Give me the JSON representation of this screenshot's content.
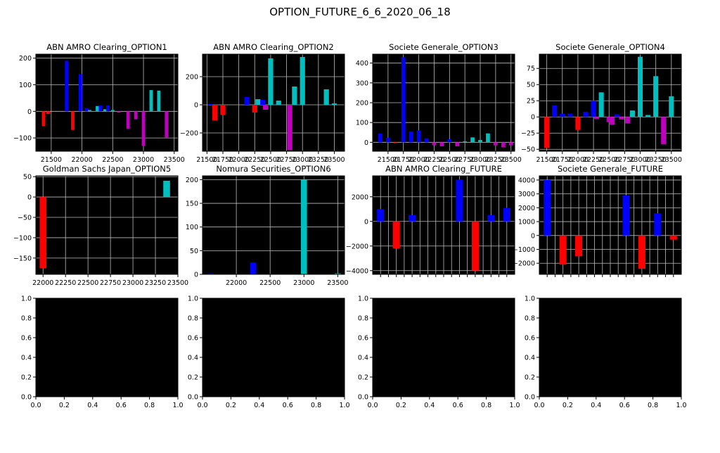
{
  "figure": {
    "title": "OPTION_FUTURE_6_6_2020_06_18",
    "background": "#ffffff",
    "plot_background": "#000000",
    "grid": true,
    "grid_color": "#bbbbbb",
    "colors": {
      "red": "#ff0000",
      "blue": "#0000ff",
      "cyan": "#00bfbf",
      "magenta": "#bf00bf"
    }
  },
  "chart_data": [
    {
      "type": "bar",
      "title": "ABN AMRO Clearing_OPTION1",
      "xlim": [
        21250,
        23560
      ],
      "ylim": [
        -150,
        215
      ],
      "xticks": [
        21500,
        22000,
        22500,
        23000,
        23500
      ],
      "yticks": [
        -100,
        0,
        100,
        200
      ],
      "bar_width": 55,
      "bars": [
        {
          "x": 21375,
          "value": -55,
          "color": "red"
        },
        {
          "x": 21450,
          "value": -10,
          "color": "red"
        },
        {
          "x": 21750,
          "value": 190,
          "color": "blue"
        },
        {
          "x": 21850,
          "value": -70,
          "color": "red"
        },
        {
          "x": 21975,
          "value": 140,
          "color": "blue"
        },
        {
          "x": 22075,
          "value": 12,
          "color": "blue"
        },
        {
          "x": 22125,
          "value": 5,
          "color": "cyan"
        },
        {
          "x": 22250,
          "value": 20,
          "color": "cyan"
        },
        {
          "x": 22300,
          "value": 22,
          "color": "blue"
        },
        {
          "x": 22375,
          "value": 8,
          "color": "cyan"
        },
        {
          "x": 22420,
          "value": 22,
          "color": "blue"
        },
        {
          "x": 22500,
          "value": 5,
          "color": "cyan"
        },
        {
          "x": 22600,
          "value": -5,
          "color": "magenta"
        },
        {
          "x": 22750,
          "value": -65,
          "color": "magenta"
        },
        {
          "x": 22875,
          "value": -30,
          "color": "magenta"
        },
        {
          "x": 23000,
          "value": -130,
          "color": "magenta"
        },
        {
          "x": 23125,
          "value": 80,
          "color": "cyan"
        },
        {
          "x": 23250,
          "value": 78,
          "color": "cyan"
        },
        {
          "x": 23375,
          "value": -100,
          "color": "magenta"
        }
      ]
    },
    {
      "type": "bar",
      "title": "ABN AMRO Clearing_OPTION2",
      "xlim": [
        21430,
        23660
      ],
      "ylim": [
        -330,
        360
      ],
      "xticks": [
        21500,
        21750,
        22000,
        22250,
        22500,
        22750,
        23000,
        23250,
        23500
      ],
      "yticks": [
        -200,
        0,
        200
      ],
      "bar_width": 80,
      "bars": [
        {
          "x": 21550,
          "value": 5,
          "color": "blue"
        },
        {
          "x": 21625,
          "value": -110,
          "color": "red"
        },
        {
          "x": 21750,
          "value": -70,
          "color": "red"
        },
        {
          "x": 22125,
          "value": 55,
          "color": "blue"
        },
        {
          "x": 22250,
          "value": -55,
          "color": "red"
        },
        {
          "x": 22300,
          "value": 40,
          "color": "cyan"
        },
        {
          "x": 22375,
          "value": 35,
          "color": "blue"
        },
        {
          "x": 22420,
          "value": -35,
          "color": "magenta"
        },
        {
          "x": 22500,
          "value": 330,
          "color": "cyan"
        },
        {
          "x": 22625,
          "value": 30,
          "color": "cyan"
        },
        {
          "x": 22800,
          "value": -320,
          "color": "magenta"
        },
        {
          "x": 22875,
          "value": 130,
          "color": "cyan"
        },
        {
          "x": 23000,
          "value": 340,
          "color": "cyan"
        },
        {
          "x": 23375,
          "value": 110,
          "color": "cyan"
        },
        {
          "x": 23500,
          "value": 10,
          "color": "cyan"
        }
      ]
    },
    {
      "type": "bar",
      "title": "Societe Generale_OPTION3",
      "xlim": [
        21250,
        23560
      ],
      "ylim": [
        -45,
        445
      ],
      "xticks": [
        21500,
        21750,
        22000,
        22250,
        22500,
        22750,
        23000,
        23250,
        23500
      ],
      "yticks": [
        0,
        100,
        200,
        300,
        400
      ],
      "bar_width": 65,
      "bars": [
        {
          "x": 21375,
          "value": 45,
          "color": "blue"
        },
        {
          "x": 21500,
          "value": 22,
          "color": "blue"
        },
        {
          "x": 21625,
          "value": -3,
          "color": "red"
        },
        {
          "x": 21750,
          "value": 430,
          "color": "blue"
        },
        {
          "x": 21875,
          "value": 55,
          "color": "blue"
        },
        {
          "x": 22000,
          "value": 60,
          "color": "blue"
        },
        {
          "x": 22125,
          "value": 20,
          "color": "blue"
        },
        {
          "x": 22250,
          "value": -15,
          "color": "magenta"
        },
        {
          "x": 22375,
          "value": -20,
          "color": "magenta"
        },
        {
          "x": 22500,
          "value": 15,
          "color": "blue"
        },
        {
          "x": 22625,
          "value": -20,
          "color": "magenta"
        },
        {
          "x": 22750,
          "value": 5,
          "color": "cyan"
        },
        {
          "x": 22875,
          "value": 25,
          "color": "cyan"
        },
        {
          "x": 23000,
          "value": 12,
          "color": "cyan"
        },
        {
          "x": 23125,
          "value": 45,
          "color": "cyan"
        },
        {
          "x": 23250,
          "value": -15,
          "color": "magenta"
        },
        {
          "x": 23375,
          "value": -25,
          "color": "magenta"
        },
        {
          "x": 23500,
          "value": -15,
          "color": "magenta"
        }
      ]
    },
    {
      "type": "bar",
      "title": "Societe Generale_OPTION4",
      "xlim": [
        21380,
        23660
      ],
      "ylim": [
        -53,
        97
      ],
      "xticks": [
        21500,
        21750,
        22000,
        22250,
        22500,
        22750,
        23000,
        23250,
        23500
      ],
      "yticks": [
        -50,
        -25,
        0,
        25,
        50,
        75
      ],
      "bar_width": 80,
      "bars": [
        {
          "x": 21500,
          "value": -48,
          "color": "red"
        },
        {
          "x": 21625,
          "value": 18,
          "color": "blue"
        },
        {
          "x": 21750,
          "value": 5,
          "color": "blue"
        },
        {
          "x": 21875,
          "value": 5,
          "color": "blue"
        },
        {
          "x": 22000,
          "value": -20,
          "color": "red"
        },
        {
          "x": 22125,
          "value": 8,
          "color": "blue"
        },
        {
          "x": 22250,
          "value": 25,
          "color": "blue"
        },
        {
          "x": 22300,
          "value": -3,
          "color": "magenta"
        },
        {
          "x": 22375,
          "value": 38,
          "color": "cyan"
        },
        {
          "x": 22500,
          "value": -8,
          "color": "magenta"
        },
        {
          "x": 22550,
          "value": -12,
          "color": "magenta"
        },
        {
          "x": 22625,
          "value": 4,
          "color": "blue"
        },
        {
          "x": 22700,
          "value": -4,
          "color": "magenta"
        },
        {
          "x": 22800,
          "value": -10,
          "color": "magenta"
        },
        {
          "x": 22875,
          "value": 10,
          "color": "cyan"
        },
        {
          "x": 23000,
          "value": 93,
          "color": "cyan"
        },
        {
          "x": 23125,
          "value": 3,
          "color": "cyan"
        },
        {
          "x": 23250,
          "value": 63,
          "color": "cyan"
        },
        {
          "x": 23375,
          "value": -42,
          "color": "magenta"
        },
        {
          "x": 23500,
          "value": 32,
          "color": "cyan"
        }
      ]
    },
    {
      "type": "bar",
      "title": "Goldman Sachs Japan_OPTION5",
      "xlim": [
        21920,
        23500
      ],
      "ylim": [
        -190,
        52
      ],
      "xticks": [
        22000,
        22250,
        22500,
        22750,
        23000,
        23250,
        23500
      ],
      "yticks": [
        -150,
        -100,
        -50,
        0,
        50
      ],
      "bar_width": 75,
      "bars": [
        {
          "x": 22000,
          "value": -175,
          "color": "red"
        },
        {
          "x": 23375,
          "value": 40,
          "color": "cyan"
        }
      ]
    },
    {
      "type": "bar",
      "title": "Nomura Securities_OPTION6",
      "xlim": [
        21500,
        23600
      ],
      "ylim": [
        0,
        208
      ],
      "xticks": [
        22000,
        22500,
        23000,
        23500
      ],
      "yticks": [
        0,
        50,
        100,
        150,
        200
      ],
      "bar_width": 90,
      "bars": [
        {
          "x": 21625,
          "value": 2,
          "color": "blue"
        },
        {
          "x": 22250,
          "value": 25,
          "color": "blue"
        },
        {
          "x": 23000,
          "value": 200,
          "color": "cyan"
        },
        {
          "x": 23500,
          "value": 2,
          "color": "cyan"
        }
      ]
    },
    {
      "type": "bar",
      "title": "ABN AMRO Clearing_FUTURE",
      "xlim": [
        0,
        18
      ],
      "ylim": [
        -4300,
        3700
      ],
      "xticks": [
        1,
        2,
        3,
        4,
        5,
        6,
        7,
        8,
        9,
        10,
        11,
        12,
        13,
        14,
        15,
        16,
        17
      ],
      "xticklabels": false,
      "yticks": [
        -4000,
        -2000,
        0,
        2000
      ],
      "bar_width": 0.9,
      "bars": [
        {
          "x": 1,
          "value": 1000,
          "color": "blue"
        },
        {
          "x": 3,
          "value": -2200,
          "color": "red"
        },
        {
          "x": 5,
          "value": 500,
          "color": "blue"
        },
        {
          "x": 11,
          "value": 3400,
          "color": "blue"
        },
        {
          "x": 13,
          "value": -4000,
          "color": "red"
        },
        {
          "x": 15,
          "value": 500,
          "color": "blue"
        },
        {
          "x": 17,
          "value": 1100,
          "color": "blue"
        }
      ]
    },
    {
      "type": "bar",
      "title": "Societe Generale_FUTURE",
      "xlim": [
        0,
        18
      ],
      "ylim": [
        -2800,
        4300
      ],
      "xticks": [
        1,
        2,
        3,
        4,
        5,
        6,
        7,
        8,
        9,
        10,
        11,
        12,
        13,
        14,
        15,
        16,
        17
      ],
      "xticklabels": false,
      "yticks": [
        -2000,
        -1000,
        0,
        1000,
        2000,
        3000,
        4000
      ],
      "bar_width": 0.9,
      "bars": [
        {
          "x": 1,
          "value": 4000,
          "color": "blue"
        },
        {
          "x": 3,
          "value": -2100,
          "color": "red"
        },
        {
          "x": 5,
          "value": -1500,
          "color": "red"
        },
        {
          "x": 11,
          "value": 2900,
          "color": "blue"
        },
        {
          "x": 13,
          "value": -2400,
          "color": "red"
        },
        {
          "x": 15,
          "value": 1600,
          "color": "blue"
        },
        {
          "x": 17,
          "value": -300,
          "color": "red"
        }
      ]
    },
    {
      "type": "bar",
      "title": "",
      "empty": true,
      "xlim": [
        0,
        1
      ],
      "ylim": [
        0,
        1
      ],
      "xticks": [
        0.0,
        0.2,
        0.4,
        0.6,
        0.8,
        1.0
      ],
      "yticks": [
        0.0,
        0.2,
        0.4,
        0.6,
        0.8,
        1.0
      ],
      "decimals": 1,
      "bars": []
    },
    {
      "type": "bar",
      "title": "",
      "empty": true,
      "xlim": [
        0,
        1
      ],
      "ylim": [
        0,
        1
      ],
      "xticks": [
        0.0,
        0.2,
        0.4,
        0.6,
        0.8,
        1.0
      ],
      "yticks": [
        0.0,
        0.2,
        0.4,
        0.6,
        0.8,
        1.0
      ],
      "decimals": 1,
      "bars": []
    },
    {
      "type": "bar",
      "title": "",
      "empty": true,
      "xlim": [
        0,
        1
      ],
      "ylim": [
        0,
        1
      ],
      "xticks": [
        0.0,
        0.2,
        0.4,
        0.6,
        0.8,
        1.0
      ],
      "yticks": [
        0.0,
        0.2,
        0.4,
        0.6,
        0.8,
        1.0
      ],
      "decimals": 1,
      "bars": []
    },
    {
      "type": "bar",
      "title": "",
      "empty": true,
      "xlim": [
        0,
        1
      ],
      "ylim": [
        0,
        1
      ],
      "xticks": [
        0.0,
        0.2,
        0.4,
        0.6,
        0.8,
        1.0
      ],
      "yticks": [
        0.0,
        0.2,
        0.4,
        0.6,
        0.8,
        1.0
      ],
      "decimals": 1,
      "bars": []
    }
  ]
}
